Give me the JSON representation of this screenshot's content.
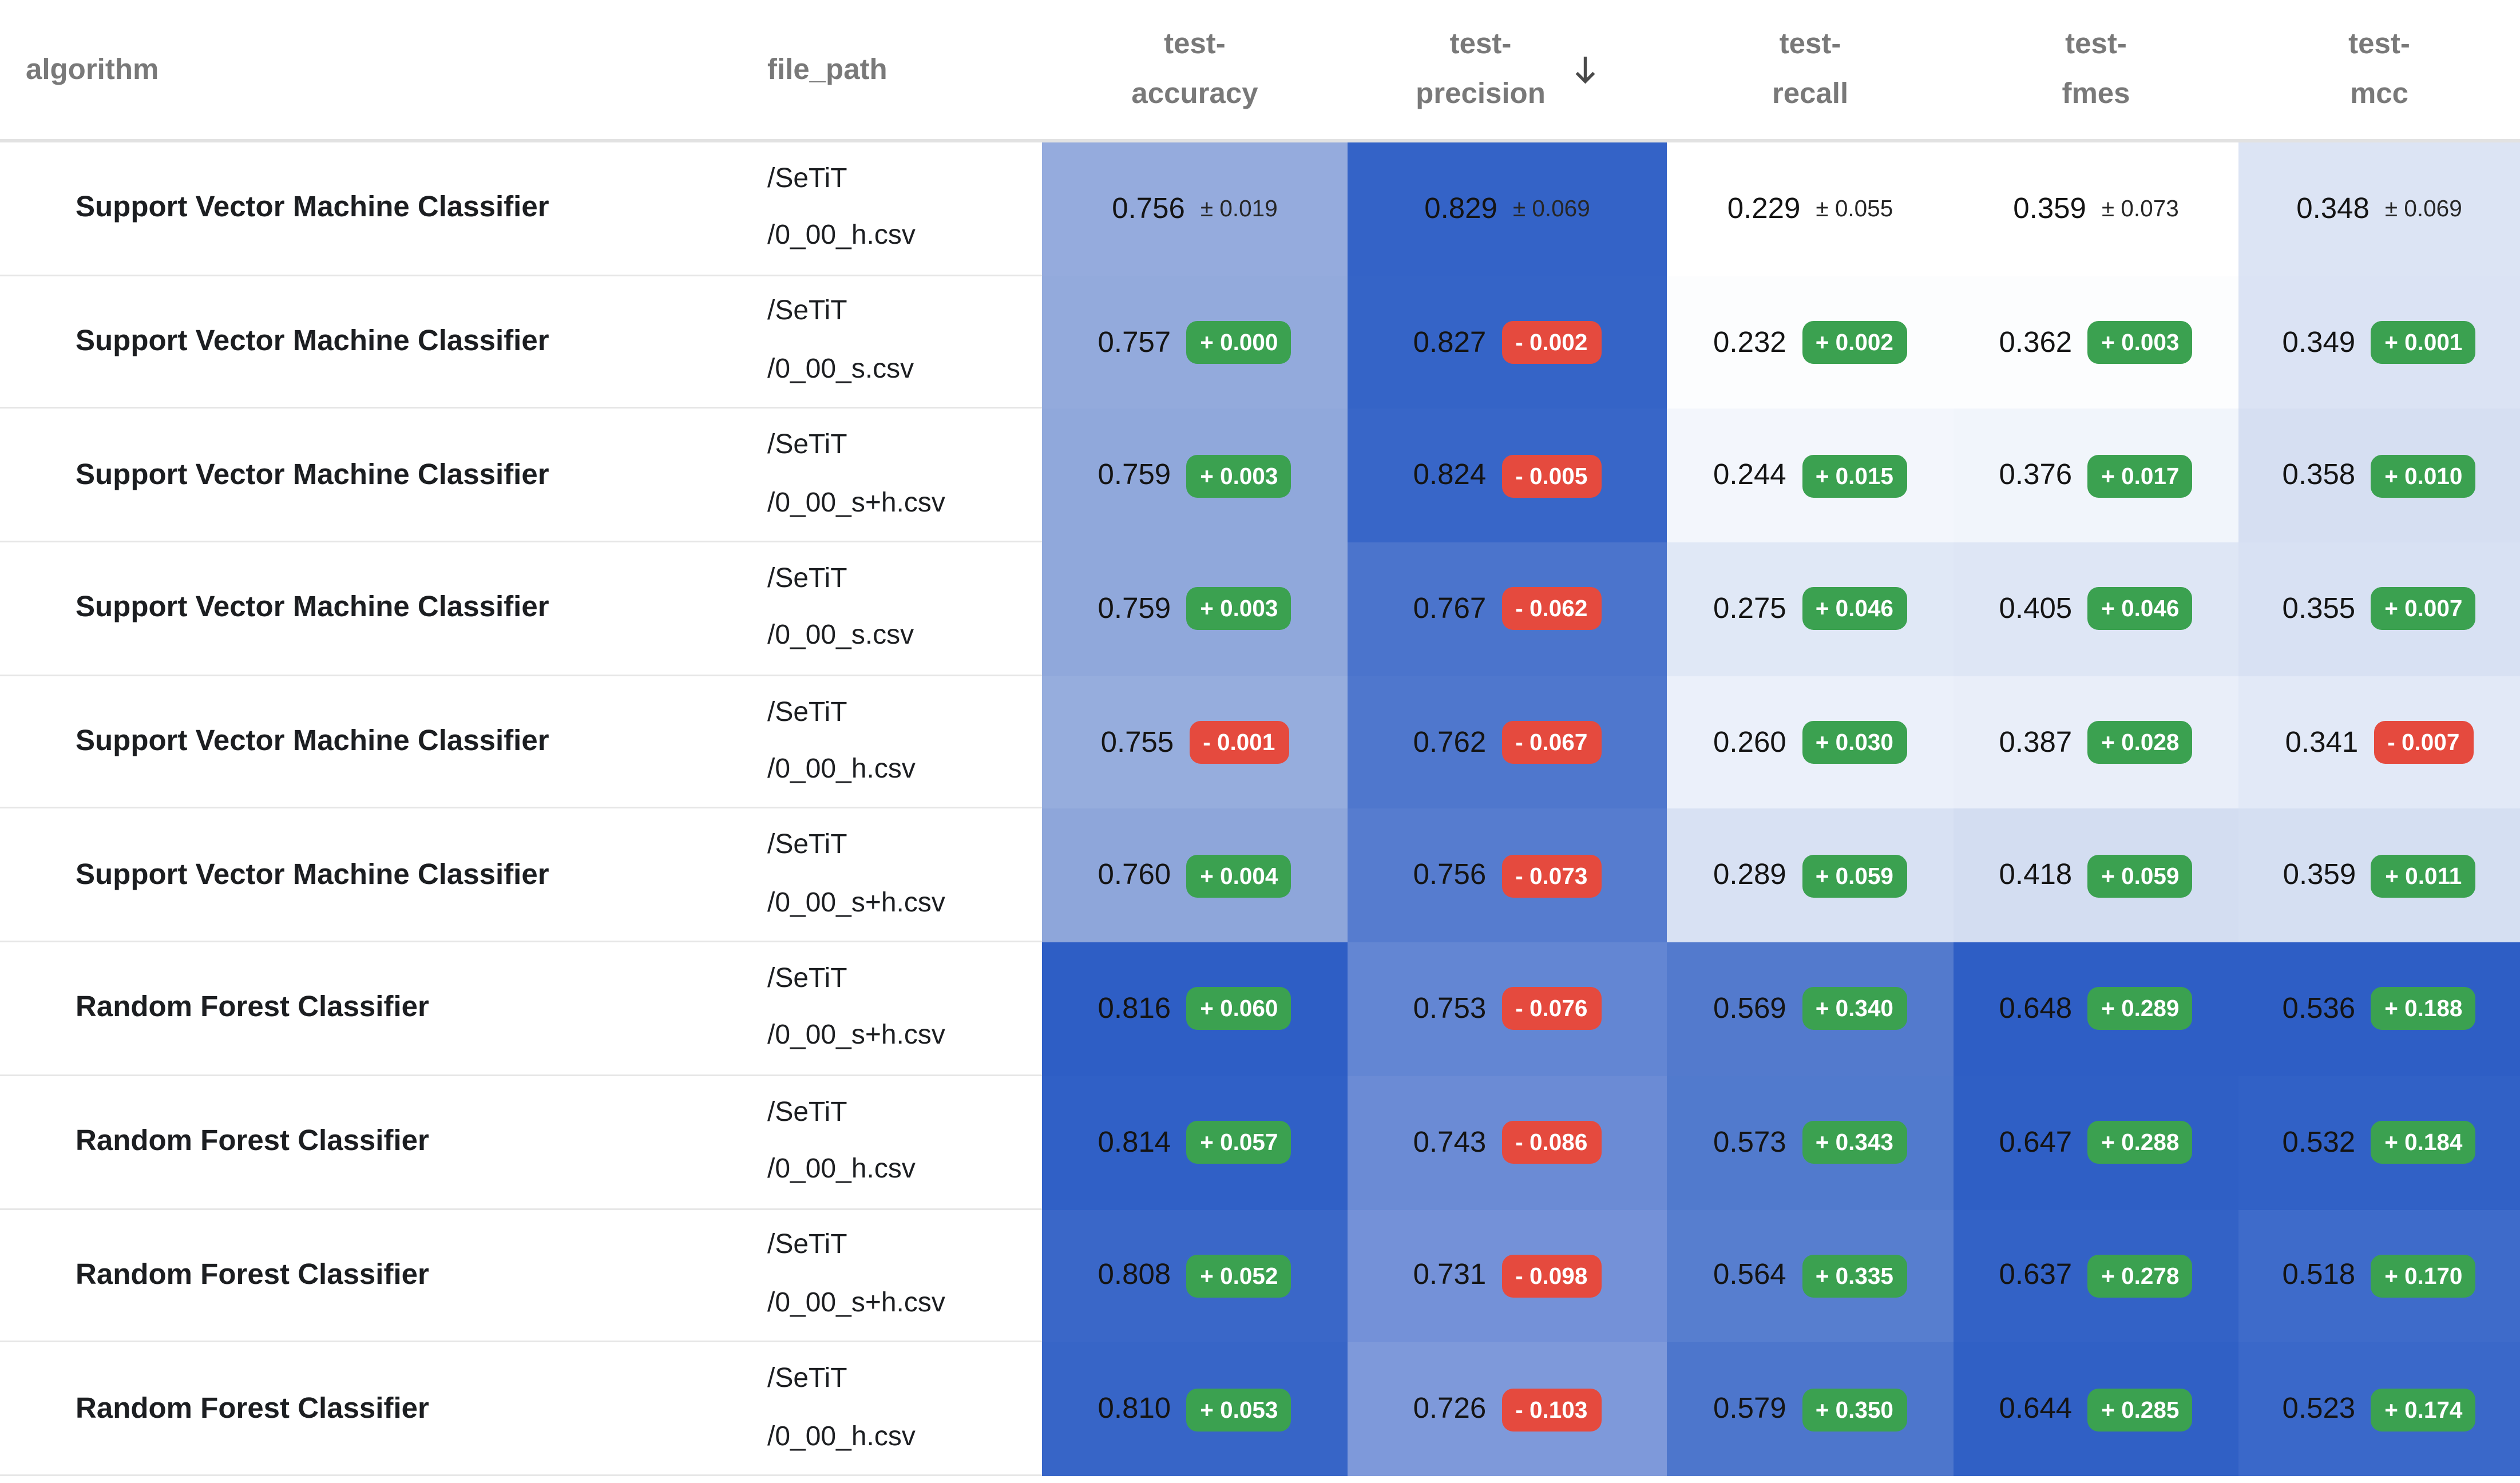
{
  "colors": {
    "positive_badge": "#3ba150",
    "negative_badge": "#e54a3e",
    "header_text": "#797979",
    "row_divider": "#e6e6e6",
    "heatmap_dark_blue": "#2e5ec5",
    "heatmap_light_blue": "#dce4f4"
  },
  "table": {
    "sort": {
      "column": "test-precision",
      "direction": "descending",
      "icon": "arrow-down"
    },
    "headers": [
      {
        "id": "algorithm",
        "label": "algorithm"
      },
      {
        "id": "file-path",
        "label": "file_path"
      },
      {
        "id": "test-accuracy",
        "line1": "test-",
        "line2": "accuracy"
      },
      {
        "id": "test-precision",
        "line1": "test-",
        "line2": "precision"
      },
      {
        "id": "test-recall",
        "line1": "test-",
        "line2": "recall"
      },
      {
        "id": "test-fmes",
        "line1": "test-",
        "line2": "fmes"
      },
      {
        "id": "test-mcc",
        "line1": "test-",
        "line2": "mcc"
      }
    ],
    "rows": [
      {
        "algorithm": "Support Vector Machine Classifier",
        "file_path": [
          "/SeTiT",
          "/0_00_h.csv"
        ],
        "metrics": [
          {
            "value": "0.756",
            "delta": "± 0.019",
            "kind": "baseline",
            "bg": "#95abdd"
          },
          {
            "value": "0.829",
            "delta": "± 0.069",
            "kind": "baseline",
            "bg": "#3463c7"
          },
          {
            "value": "0.229",
            "delta": "± 0.055",
            "kind": "baseline",
            "bg": "#ffffff"
          },
          {
            "value": "0.359",
            "delta": "± 0.073",
            "kind": "baseline",
            "bg": "#ffffff"
          },
          {
            "value": "0.348",
            "delta": "± 0.069",
            "kind": "baseline",
            "bg": "#dce4f4"
          }
        ]
      },
      {
        "algorithm": "Support Vector Machine Classifier",
        "file_path": [
          "/SeTiT",
          "/0_00_s.csv"
        ],
        "metrics": [
          {
            "value": "0.757",
            "delta": "+ 0.000",
            "kind": "pos",
            "bg": "#93aadc"
          },
          {
            "value": "0.827",
            "delta": "- 0.002",
            "kind": "neg",
            "bg": "#3564c7"
          },
          {
            "value": "0.232",
            "delta": "+ 0.002",
            "kind": "pos",
            "bg": "#fcfdfe"
          },
          {
            "value": "0.362",
            "delta": "+ 0.003",
            "kind": "pos",
            "bg": "#fcfdfe"
          },
          {
            "value": "0.349",
            "delta": "+ 0.001",
            "kind": "pos",
            "bg": "#dbe3f4"
          }
        ]
      },
      {
        "algorithm": "Support Vector Machine Classifier",
        "file_path": [
          "/SeTiT",
          "/0_00_s+h.csv"
        ],
        "metrics": [
          {
            "value": "0.759",
            "delta": "+ 0.003",
            "kind": "pos",
            "bg": "#90a8db"
          },
          {
            "value": "0.824",
            "delta": "- 0.005",
            "kind": "neg",
            "bg": "#3866c8"
          },
          {
            "value": "0.244",
            "delta": "+ 0.015",
            "kind": "pos",
            "bg": "#f3f6fc"
          },
          {
            "value": "0.376",
            "delta": "+ 0.017",
            "kind": "pos",
            "bg": "#f1f5fb"
          },
          {
            "value": "0.358",
            "delta": "+ 0.010",
            "kind": "pos",
            "bg": "#d6dff2"
          }
        ]
      },
      {
        "algorithm": "Support Vector Machine Classifier",
        "file_path": [
          "/SeTiT",
          "/0_00_s.csv"
        ],
        "metrics": [
          {
            "value": "0.759",
            "delta": "+ 0.003",
            "kind": "pos",
            "bg": "#90a8db"
          },
          {
            "value": "0.767",
            "delta": "- 0.062",
            "kind": "neg",
            "bg": "#4b74cc"
          },
          {
            "value": "0.275",
            "delta": "+ 0.046",
            "kind": "pos",
            "bg": "#e0e8f6"
          },
          {
            "value": "0.405",
            "delta": "+ 0.046",
            "kind": "pos",
            "bg": "#dee6f5"
          },
          {
            "value": "0.355",
            "delta": "+ 0.007",
            "kind": "pos",
            "bg": "#d8e1f3"
          }
        ]
      },
      {
        "algorithm": "Support Vector Machine Classifier",
        "file_path": [
          "/SeTiT",
          "/0_00_h.csv"
        ],
        "metrics": [
          {
            "value": "0.755",
            "delta": "- 0.001",
            "kind": "neg",
            "bg": "#96addd"
          },
          {
            "value": "0.762",
            "delta": "- 0.067",
            "kind": "neg",
            "bg": "#4f77cd"
          },
          {
            "value": "0.260",
            "delta": "+ 0.030",
            "kind": "pos",
            "bg": "#ebf0fa"
          },
          {
            "value": "0.387",
            "delta": "+ 0.028",
            "kind": "pos",
            "bg": "#e9eef9"
          },
          {
            "value": "0.341",
            "delta": "- 0.007",
            "kind": "neg",
            "bg": "#e2e9f7"
          }
        ]
      },
      {
        "algorithm": "Support Vector Machine Classifier",
        "file_path": [
          "/SeTiT",
          "/0_00_s+h.csv"
        ],
        "metrics": [
          {
            "value": "0.760",
            "delta": "+ 0.004",
            "kind": "pos",
            "bg": "#8ea6da"
          },
          {
            "value": "0.756",
            "delta": "- 0.073",
            "kind": "neg",
            "bg": "#567ccf"
          },
          {
            "value": "0.289",
            "delta": "+ 0.059",
            "kind": "pos",
            "bg": "#d8e1f3"
          },
          {
            "value": "0.418",
            "delta": "+ 0.059",
            "kind": "pos",
            "bg": "#d3ddf1"
          },
          {
            "value": "0.359",
            "delta": "+ 0.011",
            "kind": "pos",
            "bg": "#d5dff2"
          }
        ]
      },
      {
        "algorithm": "Random Forest Classifier",
        "file_path": [
          "/SeTiT",
          "/0_00_s+h.csv"
        ],
        "metrics": [
          {
            "value": "0.816",
            "delta": "+ 0.060",
            "kind": "pos",
            "bg": "#2e5ec5"
          },
          {
            "value": "0.753",
            "delta": "- 0.076",
            "kind": "neg",
            "bg": "#6386d3"
          },
          {
            "value": "0.569",
            "delta": "+ 0.340",
            "kind": "pos",
            "bg": "#537acd"
          },
          {
            "value": "0.648",
            "delta": "+ 0.289",
            "kind": "pos",
            "bg": "#2e5ec5"
          },
          {
            "value": "0.536",
            "delta": "+ 0.188",
            "kind": "pos",
            "bg": "#2e5ec5"
          }
        ]
      },
      {
        "algorithm": "Random Forest Classifier",
        "file_path": [
          "/SeTiT",
          "/0_00_h.csv"
        ],
        "metrics": [
          {
            "value": "0.814",
            "delta": "+ 0.057",
            "kind": "pos",
            "bg": "#3060c6"
          },
          {
            "value": "0.743",
            "delta": "- 0.086",
            "kind": "neg",
            "bg": "#6b8bd5"
          },
          {
            "value": "0.573",
            "delta": "+ 0.343",
            "kind": "pos",
            "bg": "#517acd"
          },
          {
            "value": "0.647",
            "delta": "+ 0.288",
            "kind": "pos",
            "bg": "#2f5fc5"
          },
          {
            "value": "0.532",
            "delta": "+ 0.184",
            "kind": "pos",
            "bg": "#3161c6"
          }
        ]
      },
      {
        "algorithm": "Random Forest Classifier",
        "file_path": [
          "/SeTiT",
          "/0_00_s+h.csv"
        ],
        "metrics": [
          {
            "value": "0.808",
            "delta": "+ 0.052",
            "kind": "pos",
            "bg": "#3a67c8"
          },
          {
            "value": "0.731",
            "delta": "- 0.098",
            "kind": "neg",
            "bg": "#7491d8"
          },
          {
            "value": "0.564",
            "delta": "+ 0.335",
            "kind": "pos",
            "bg": "#577ecf"
          },
          {
            "value": "0.637",
            "delta": "+ 0.278",
            "kind": "pos",
            "bg": "#3362c6"
          },
          {
            "value": "0.518",
            "delta": "+ 0.170",
            "kind": "pos",
            "bg": "#3e6bca"
          }
        ]
      },
      {
        "algorithm": "Random Forest Classifier",
        "file_path": [
          "/SeTiT",
          "/0_00_h.csv"
        ],
        "metrics": [
          {
            "value": "0.810",
            "delta": "+ 0.053",
            "kind": "pos",
            "bg": "#3765c7"
          },
          {
            "value": "0.726",
            "delta": "- 0.103",
            "kind": "neg",
            "bg": "#7e99da"
          },
          {
            "value": "0.579",
            "delta": "+ 0.350",
            "kind": "pos",
            "bg": "#4d76cc"
          },
          {
            "value": "0.644",
            "delta": "+ 0.285",
            "kind": "pos",
            "bg": "#3060c5"
          },
          {
            "value": "0.523",
            "delta": "+ 0.174",
            "kind": "pos",
            "bg": "#3a68c9"
          }
        ]
      }
    ]
  }
}
